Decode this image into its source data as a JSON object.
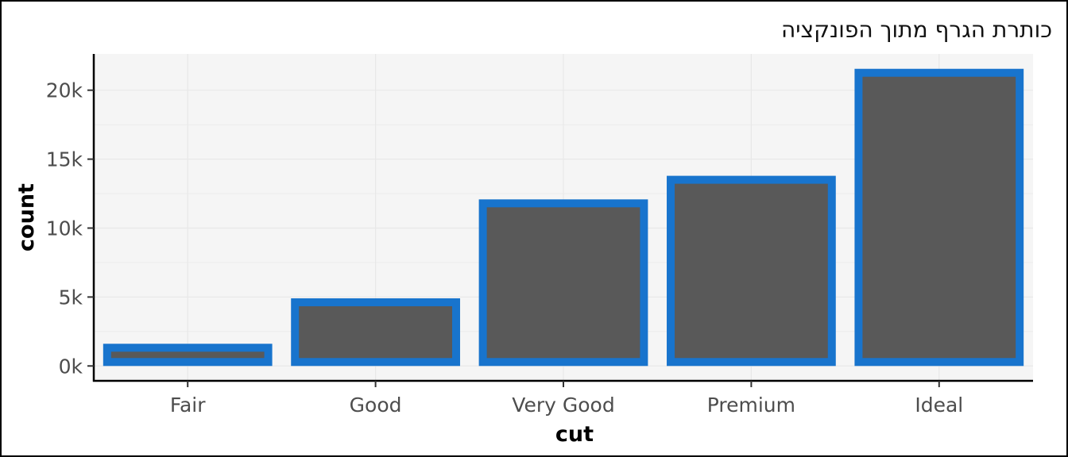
{
  "chart_data": {
    "type": "bar",
    "title": "כותרת הגרף מתוך הפונקציה",
    "xlabel": "cut",
    "ylabel": "count",
    "categories": [
      "Fair",
      "Good",
      "Very Good",
      "Premium",
      "Ideal"
    ],
    "values": [
      1610,
      4906,
      12082,
      13791,
      21551
    ],
    "y_ticks": [
      0,
      5000,
      10000,
      15000,
      20000
    ],
    "y_tick_labels": [
      "0k",
      "5k",
      "10k",
      "15k",
      "20k"
    ],
    "ylim": [
      -1078,
      22629
    ],
    "grid": true,
    "legend": "none",
    "colors": {
      "bar_fill": "#595959",
      "bar_outline": "#1874CD",
      "panel_background": "#F5F5F5",
      "grid": "#E8E8E8",
      "axis_line": "#000000"
    }
  }
}
